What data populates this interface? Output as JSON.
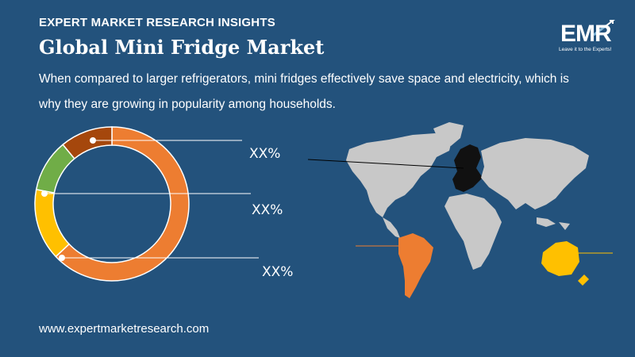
{
  "header": {
    "eyebrow": "EXPERT MARKET RESEARCH INSIGHTS",
    "title": "Global Mini Fridge Market",
    "description": "When compared to larger refrigerators, mini fridges effectively save space and electricity, which is why they are growing in popularity among households."
  },
  "logo": {
    "text": "EMR",
    "tagline": "Leave it to the Experts!"
  },
  "footer": {
    "url": "www.expertmarketresearch.com"
  },
  "colors": {
    "background": "#23527c",
    "orange": "#ed7d31",
    "yellow": "#ffc000",
    "green": "#70ad47",
    "brown": "#a5470c",
    "map_land": "#c8c8c8",
    "europe": "#111111"
  },
  "chart_data": {
    "type": "pie",
    "variant": "donut",
    "categories": [
      "",
      "",
      "",
      ""
    ],
    "values": [
      63,
      15,
      11,
      11
    ],
    "colors": [
      "#ed7d31",
      "#ffc000",
      "#70ad47",
      "#a5470c"
    ],
    "labels": [
      "XX%",
      "XX%",
      "XX%"
    ]
  },
  "map": {
    "highlighted_regions": [
      {
        "region": "Europe",
        "color": "#111111"
      },
      {
        "region": "Latin America",
        "color": "#ed7d31"
      },
      {
        "region": "Australia",
        "color": "#ffc000"
      }
    ]
  }
}
